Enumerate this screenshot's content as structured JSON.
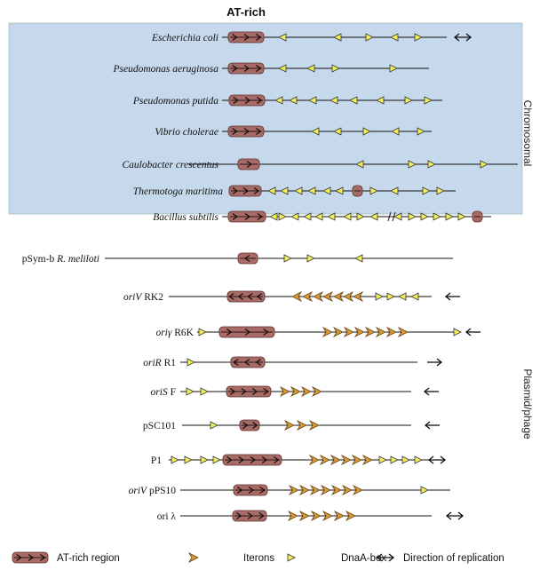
{
  "title": "AT-rich",
  "sections": [
    {
      "id": "chromosomal",
      "label": "Chromosomal",
      "color": "#c6d9ec"
    },
    {
      "id": "psym",
      "label": "",
      "color": "#c3df85"
    },
    {
      "id": "plasmid",
      "label": "Plasmid/phage",
      "color": "#eef2b0"
    }
  ],
  "colors": {
    "at_fill": "#a86b66",
    "at_stroke": "#5c2f2b",
    "iteron": "#d59a3a",
    "dnaa": "#f2ee5a"
  },
  "rows": [
    {
      "label": [
        {
          "t": "Escherichia coli",
          "i": true
        }
      ],
      "section": "chromosomal"
    },
    {
      "label": [
        {
          "t": "Pseudomonas aeruginosa",
          "i": true
        }
      ],
      "section": "chromosomal"
    },
    {
      "label": [
        {
          "t": "Pseudomonas putida",
          "i": true
        }
      ],
      "section": "chromosomal"
    },
    {
      "label": [
        {
          "t": "Vibrio cholerae",
          "i": true
        }
      ],
      "section": "chromosomal"
    },
    {
      "label": [
        {
          "t": "Caulobacter crescentus",
          "i": true
        }
      ],
      "section": "chromosomal"
    },
    {
      "label": [
        {
          "t": "Thermotoga maritima",
          "i": true
        }
      ],
      "section": "chromosomal"
    },
    {
      "label": [
        {
          "t": "Bacillus subtilis",
          "i": true
        }
      ],
      "section": "chromosomal"
    },
    {
      "label": [
        {
          "t": "pSym-b ",
          "i": false
        },
        {
          "t": "R. meliloti",
          "i": true
        }
      ],
      "section": "psym"
    },
    {
      "label": [
        {
          "t": "oriV",
          "i": true
        },
        {
          "t": " RK2",
          "i": false
        }
      ],
      "section": "plasmid"
    },
    {
      "label": [
        {
          "t": "oriγ",
          "i": true
        },
        {
          "t": " R6K",
          "i": false
        }
      ],
      "section": "plasmid"
    },
    {
      "label": [
        {
          "t": "oriR",
          "i": true
        },
        {
          "t": " R1",
          "i": false
        }
      ],
      "section": "plasmid"
    },
    {
      "label": [
        {
          "t": "oriS",
          "i": true
        },
        {
          "t": " F",
          "i": false
        }
      ],
      "section": "plasmid"
    },
    {
      "label": [
        {
          "t": "pSC101",
          "i": false
        }
      ],
      "section": "plasmid"
    },
    {
      "label": [
        {
          "t": "P1",
          "i": false
        }
      ],
      "section": "plasmid"
    },
    {
      "label": [
        {
          "t": "oriV",
          "i": true
        },
        {
          "t": " pPS10",
          "i": false
        }
      ],
      "section": "plasmid"
    },
    {
      "label": [
        {
          "t": "ori λ",
          "i": false
        }
      ],
      "section": "plasmid"
    }
  ],
  "legend": [
    {
      "icon": "at-rich-region-icon",
      "label": "AT-rich region"
    },
    {
      "icon": "iteron-icon",
      "label": "Iterons"
    },
    {
      "icon": "dnaa-box-icon",
      "label": "DnaA-box"
    },
    {
      "icon": "bidirectional-arrow-icon",
      "label": "Direction of replication"
    }
  ]
}
